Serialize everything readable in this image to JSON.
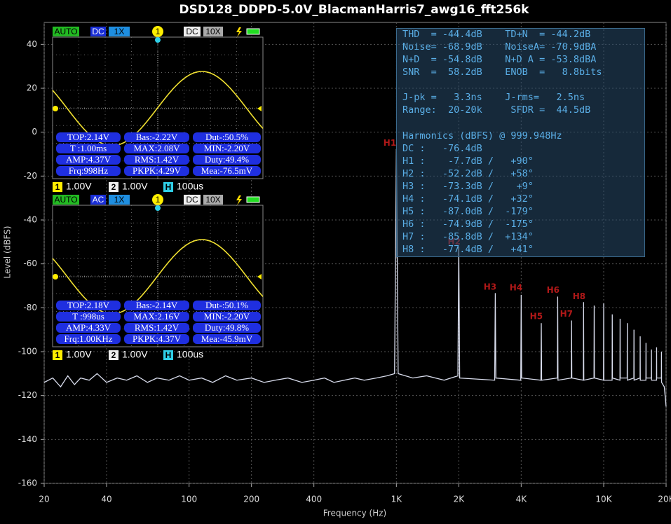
{
  "chart_data": {
    "type": "line",
    "title": "DSD128_DDPD-5.0V_BlacmanHarris7_awg16_fft256k",
    "xlabel": "Frequency (Hz)",
    "ylabel": "Level (dBFS)",
    "xscale": "log",
    "xlim": [
      20,
      20000
    ],
    "ylim": [
      -160,
      50
    ],
    "xticks": [
      20,
      40,
      100,
      200,
      400,
      {
        "value": 1000,
        "label": "1K"
      },
      {
        "value": 2000,
        "label": "2K"
      },
      {
        "value": 4000,
        "label": "4K"
      },
      {
        "value": 10000,
        "label": "10K"
      },
      {
        "value": 20000,
        "label": "20K"
      }
    ],
    "yticks": [
      -160,
      -140,
      -120,
      -100,
      -80,
      -60,
      -40,
      -20,
      0,
      20,
      40
    ],
    "grid": true,
    "series": [
      {
        "name": "Level",
        "color": "#d8dcec",
        "x": [
          20,
          22,
          24,
          26,
          28,
          30,
          33,
          36,
          40,
          45,
          50,
          56,
          63,
          70,
          80,
          90,
          100,
          115,
          130,
          150,
          170,
          200,
          230,
          260,
          300,
          350,
          400,
          450,
          500,
          560,
          630,
          700,
          800,
          900,
          980,
          1000,
          1020,
          1200,
          1400,
          1700,
          1980,
          2000,
          2020,
          2980,
          3000,
          3020,
          3980,
          4000,
          4020,
          4980,
          5000,
          5020,
          5980,
          6000,
          6020,
          6980,
          7000,
          7020,
          7980,
          8000,
          8020,
          8980,
          9000,
          9020,
          9980,
          10000,
          10020,
          10980,
          11000,
          11020,
          11980,
          12000,
          12020,
          12980,
          13000,
          13020,
          13980,
          14000,
          14020,
          14980,
          15000,
          15020,
          15980,
          16000,
          16020,
          16980,
          17000,
          17020,
          17980,
          18000,
          18020,
          18980,
          19000,
          19020,
          19600,
          20000
        ],
        "values": [
          -114,
          -112,
          -116,
          -111,
          -115,
          -112,
          -113,
          -110,
          -114,
          -112,
          -113,
          -111,
          -114,
          -112,
          -113,
          -111,
          -113,
          -112,
          -114,
          -111,
          -113,
          -112,
          -114,
          -113,
          -112,
          -114,
          -113,
          -112,
          -114,
          -113,
          -112,
          -113,
          -112,
          -111,
          -110,
          -7.7,
          -110,
          -112,
          -111,
          -113,
          -111,
          -52.2,
          -112,
          -113,
          -73.3,
          -112,
          -113,
          -74.1,
          -112,
          -113,
          -87,
          -113,
          -112,
          -74.9,
          -113,
          -112,
          -85.8,
          -112,
          -113,
          -77.4,
          -113,
          -112,
          -79,
          -112,
          -113,
          -78,
          -113,
          -113,
          -83,
          -112,
          -113,
          -85,
          -112,
          -112,
          -87,
          -113,
          -112,
          -90,
          -113,
          -112,
          -93,
          -113,
          -113,
          -96,
          -112,
          -112,
          -99,
          -113,
          -113,
          -98,
          -112,
          -112,
          -100,
          -114,
          -116,
          -125
        ]
      }
    ],
    "annotations": [
      {
        "text": "H1",
        "x": 930,
        "y": -5
      },
      {
        "text": "H2",
        "x": 1900,
        "y": -50
      },
      {
        "text": "H3",
        "x": 2830,
        "y": -70.7
      },
      {
        "text": "H4",
        "x": 3776,
        "y": -71
      },
      {
        "text": "H5",
        "x": 4730,
        "y": -84
      },
      {
        "text": "H6",
        "x": 5700,
        "y": -72
      },
      {
        "text": "H7",
        "x": 6610,
        "y": -83
      },
      {
        "text": "H8",
        "x": 7610,
        "y": -75
      }
    ],
    "stats": [
      [
        "THD  = -44.4dB    TD+N  = -44.2dB",
        "Noise= -68.9dB    NoiseA= -70.9dBA",
        "N+D  = -54.8dB    N+D A = -53.8dBA",
        "SNR  =  58.2dB    ENOB  =   8.8bits"
      ],
      [
        "J-pk =   3.3ns    J-rms=   2.5ns",
        "Range:  20-20k     SFDR =  44.5dB"
      ],
      [
        "Harmonics (dBFS) @ 999.948Hz",
        "DC :   -76.4dB",
        "H1 :    -7.7dB /   +90°",
        "H2 :   -52.2dB /   +58°",
        "H3 :   -73.3dB /    +9°",
        "H4 :   -74.1dB /   +32°",
        "H5 :   -87.0dB /  -179°",
        "H6 :   -74.9dB /  -175°",
        "H7 :   -85.8dB /  +134°",
        "H8 :   -77.4dB /   +41°"
      ]
    ]
  },
  "scopes": [
    {
      "header": [
        "AUTO",
        "DC",
        "1X",
        "1",
        "DC",
        "10X"
      ],
      "measurements": [
        [
          "TOP:2.14V",
          "Bas:-2.22V",
          "Dut-:50.5%"
        ],
        [
          "T :1.00ms",
          "MAX:2.08V",
          "MIN:-2.20V"
        ],
        [
          "AMP:4.37V",
          "RMS:1.42V",
          "Duty:49.4%"
        ],
        [
          "Frq:998Hz",
          "PKPK:4.29V",
          "Mea:-76.5mV"
        ]
      ],
      "footer": [
        "1",
        "1.00V",
        "2",
        "1.00V",
        "H",
        "100us"
      ]
    },
    {
      "header": [
        "AUTO",
        "AC",
        "1X",
        "1",
        "DC",
        "10X"
      ],
      "measurements": [
        [
          "TOP:2.18V",
          "Bas:-2.14V",
          "Dut-:50.1%"
        ],
        [
          "T :998us",
          "MAX:2.16V",
          "MIN:-2.20V"
        ],
        [
          "AMP:4.33V",
          "RMS:1.42V",
          "Duty:49.8%"
        ],
        [
          "Frq:1.00KHz",
          "PKPK:4.37V",
          "Mea:-45.9mV"
        ]
      ],
      "footer": [
        "1",
        "1.00V",
        "2",
        "1.00V",
        "H",
        "100us"
      ]
    }
  ]
}
